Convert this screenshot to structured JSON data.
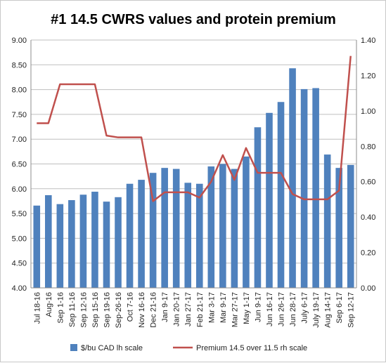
{
  "chart_data": {
    "type": "bar+line",
    "title": "#1 14.5 CWRS values and protein premium",
    "categories": [
      "Jul 18-16",
      "Aug-16",
      "Sep 1-16",
      "Sep 11-16",
      "Sep 12-16",
      "Sep 15-16",
      "Sep 19-16",
      "Sep-26-16",
      "Oct 7-16",
      "Nov 16-16",
      "Dec 21-16",
      "Jan 9-17",
      "Jan 20-17",
      "Jan 27-17",
      "Feb 21-17",
      "Mar 3-17",
      "Mar 9-17",
      "Mar 27-17",
      "May 1-17",
      "Jun 9-17",
      "Jun 16-17",
      "Jun 26-17",
      "Jun 28-17",
      "July 6-17",
      "July 19-17",
      "Aug 14-17",
      "Sep 6-17",
      "Sep 12-17"
    ],
    "x_labels": [
      "Jul 18-16",
      "Aug-16",
      "Sep 1-16",
      "Sep 11-16",
      "Sep 12-16",
      "Sep 15-16",
      "Sep 19-16",
      "Sep-26-16",
      "Oct 7-16",
      "Nov 16-16",
      "Dec 21-16",
      "Jan 9-17",
      "Jan 20-17",
      "Jan 27-17",
      "Feb 21-17",
      "Mar 3-17",
      "Mar 9-17",
      "Mar 27-17",
      "May 1-17",
      "Jun 9-17",
      "Jun 16-17",
      "Jun 26-17",
      "Jun 28-17",
      "July 6-17",
      "July 19-17",
      "Aug 14-17",
      "Sep 6-17",
      "Sep 12-17"
    ],
    "series": [
      {
        "name": "$/bu CAD lh scale",
        "type": "bar",
        "axis": "left",
        "color": "#4f81bd",
        "values": [
          5.66,
          5.87,
          5.69,
          5.77,
          5.88,
          5.94,
          5.74,
          5.83,
          6.1,
          6.18,
          6.32,
          6.42,
          6.4,
          6.12,
          6.1,
          6.45,
          6.5,
          6.4,
          6.65,
          7.24,
          7.53,
          7.75,
          8.43,
          8.01,
          8.03,
          6.69,
          6.42,
          6.48
        ]
      },
      {
        "name": "Premium 14.5 over 11.5 rh scale",
        "type": "line",
        "axis": "right",
        "color": "#c0504d",
        "values": [
          0.93,
          0.93,
          1.15,
          1.15,
          1.15,
          1.15,
          0.86,
          0.85,
          0.85,
          0.85,
          0.49,
          0.54,
          0.54,
          0.54,
          0.51,
          0.6,
          0.75,
          0.61,
          0.79,
          0.65,
          0.65,
          0.65,
          0.53,
          0.5,
          0.5,
          0.5,
          0.55,
          1.31
        ]
      }
    ],
    "y_left": {
      "min": 4.0,
      "max": 9.0,
      "step": 0.5,
      "ticks": [
        "4.00",
        "4.50",
        "5.00",
        "5.50",
        "6.00",
        "6.50",
        "7.00",
        "7.50",
        "8.00",
        "8.50",
        "9.00"
      ]
    },
    "y_right": {
      "min": 0.0,
      "max": 1.4,
      "step": 0.2,
      "ticks": [
        "0.00",
        "0.20",
        "0.40",
        "0.60",
        "0.80",
        "1.00",
        "1.20",
        "1.40"
      ]
    },
    "grid": true,
    "legend_position": "bottom",
    "legend": [
      {
        "label": "$/bu CAD lh scale",
        "kind": "bar",
        "color": "#4f81bd"
      },
      {
        "label": "Premium 14.5 over 11.5 rh scale",
        "kind": "line",
        "color": "#c0504d"
      }
    ]
  }
}
